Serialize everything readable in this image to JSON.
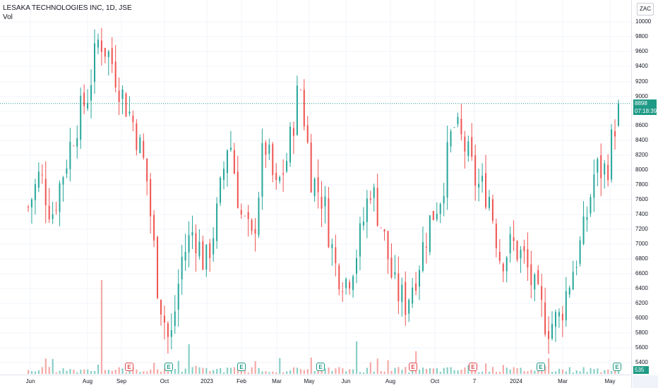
{
  "header": {
    "title": "LESAKA TECHNOLOGIES INC, 1D, JSE",
    "volume_label": "Vol",
    "currency_button": "ZAC"
  },
  "price_axis": {
    "ticks": [
      "10000",
      "9800",
      "9600",
      "9400",
      "9200",
      "9000",
      "8800",
      "8600",
      "8400",
      "8200",
      "8000",
      "7800",
      "7600",
      "7400",
      "7200",
      "7000",
      "6800",
      "6600",
      "6400",
      "6200",
      "6000",
      "5800",
      "5600",
      "5400"
    ],
    "last_price": "8898",
    "countdown": "07:18:39",
    "last_volume": "535"
  },
  "time_axis": {
    "ticks": [
      "Jun",
      "Aug",
      "Sep",
      "Oct",
      "2023",
      "Feb",
      "Mar",
      "May",
      "Jun",
      "Aug",
      "Oct",
      "7",
      "2024",
      "Mar",
      "May"
    ]
  },
  "earnings_markers": [
    {
      "label": "E",
      "color": "red"
    },
    {
      "label": "E",
      "color": "green"
    },
    {
      "label": "E",
      "color": "green"
    },
    {
      "label": "E",
      "color": "green"
    },
    {
      "label": "E",
      "color": "red"
    },
    {
      "label": "E",
      "color": "red"
    },
    {
      "label": "E",
      "color": "green"
    },
    {
      "label": "E",
      "color": "green"
    }
  ],
  "colors": {
    "up": "#26a69a",
    "down": "#ef5350",
    "up_volume": "#88cfc6",
    "down_volume": "#f4a9a7",
    "price_line": "#1f9a86"
  },
  "chart_data": {
    "type": "candlestick",
    "symbol": "LESAKA TECHNOLOGIES INC",
    "interval": "1D",
    "exchange": "JSE",
    "currency": "ZAC",
    "ylim": [
      5300,
      10100
    ],
    "last_price": 8898,
    "approx_close_series": [
      {
        "x": "Jun",
        "close": 7500
      },
      {
        "x": "Jun",
        "close": 7950
      },
      {
        "x": "Jun",
        "close": 7400
      },
      {
        "x": "Jul",
        "close": 8000
      },
      {
        "x": "Jul",
        "close": 8600
      },
      {
        "x": "Aug",
        "close": 9000
      },
      {
        "x": "Aug",
        "close": 9800
      },
      {
        "x": "Aug",
        "close": 9500
      },
      {
        "x": "Sep",
        "close": 9000
      },
      {
        "x": "Sep",
        "close": 8600
      },
      {
        "x": "Sep",
        "close": 7950
      },
      {
        "x": "Oct",
        "close": 6400
      },
      {
        "x": "Oct",
        "close": 5600
      },
      {
        "x": "Oct",
        "close": 6800
      },
      {
        "x": "Nov",
        "close": 7200
      },
      {
        "x": "Nov",
        "close": 6700
      },
      {
        "x": "Dec",
        "close": 7400
      },
      {
        "x": "2023",
        "close": 8500
      },
      {
        "x": "2023",
        "close": 7400
      },
      {
        "x": "Jan",
        "close": 7000
      },
      {
        "x": "Feb",
        "close": 8400
      },
      {
        "x": "Feb",
        "close": 7700
      },
      {
        "x": "Mar",
        "close": 8200
      },
      {
        "x": "Mar",
        "close": 9200
      },
      {
        "x": "Mar",
        "close": 7900
      },
      {
        "x": "Apr",
        "close": 7600
      },
      {
        "x": "May",
        "close": 6700
      },
      {
        "x": "May",
        "close": 6500
      },
      {
        "x": "May",
        "close": 7000
      },
      {
        "x": "Jun",
        "close": 7800
      },
      {
        "x": "Jun",
        "close": 7200
      },
      {
        "x": "Jul",
        "close": 6400
      },
      {
        "x": "Aug",
        "close": 6200
      },
      {
        "x": "Aug",
        "close": 6700
      },
      {
        "x": "Sep",
        "close": 7300
      },
      {
        "x": "Sep",
        "close": 7700
      },
      {
        "x": "Oct",
        "close": 8600
      },
      {
        "x": "Oct",
        "close": 8300
      },
      {
        "x": "Nov",
        "close": 7800
      },
      {
        "x": "Nov",
        "close": 7700
      },
      {
        "x": "Dec",
        "close": 6800
      },
      {
        "x": "Dec",
        "close": 7000
      },
      {
        "x": "2024",
        "close": 6800
      },
      {
        "x": "Feb",
        "close": 6300
      },
      {
        "x": "Feb",
        "close": 5900
      },
      {
        "x": "Mar",
        "close": 6000
      },
      {
        "x": "Mar",
        "close": 6600
      },
      {
        "x": "Apr",
        "close": 7100
      },
      {
        "x": "Apr",
        "close": 8000
      },
      {
        "x": "May",
        "close": 8000
      },
      {
        "x": "May",
        "close": 8898
      }
    ]
  }
}
